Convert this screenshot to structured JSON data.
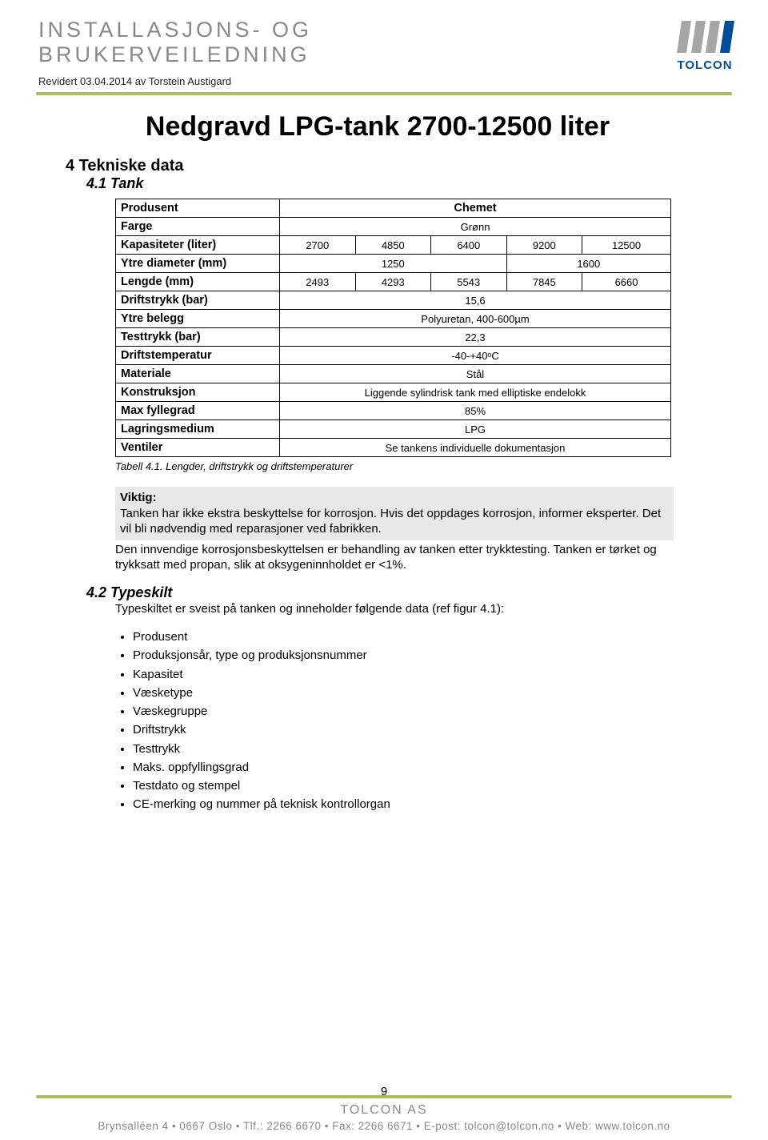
{
  "header": {
    "line1": "INSTALLASJONS- OG",
    "line2": "BRUKERVEILEDNING",
    "revised": "Revidert 03.04.2014 av Torstein Austigard",
    "logo_text": "TOLCON",
    "logo_bars": [
      {
        "fill": "#a6a6a6",
        "skew": -18,
        "x": 0
      },
      {
        "fill": "#a6a6a6",
        "skew": -18,
        "x": 18
      },
      {
        "fill": "#a6a6a6",
        "skew": -18,
        "x": 36
      },
      {
        "fill": "#004e97",
        "skew": -18,
        "x": 54
      }
    ]
  },
  "main_title": "Nedgravd LPG-tank 2700-12500 liter",
  "section4": "4  Tekniske data",
  "section41": "4.1 Tank",
  "table": {
    "columns_spec": 5,
    "rows": [
      {
        "label": "Produsent",
        "value": "Chemet",
        "colspan": 5,
        "bold": true,
        "big": true
      },
      {
        "label": "Farge",
        "value": "Grønn",
        "colspan": 5
      },
      {
        "label": "Kapasiteter (liter)",
        "cells": [
          "2700",
          "4850",
          "6400",
          "9200",
          "12500"
        ]
      },
      {
        "label": "Ytre diameter (mm)",
        "split": [
          {
            "v": "1250",
            "span": 3
          },
          {
            "v": "1600",
            "span": 2
          }
        ]
      },
      {
        "label": "Lengde (mm)",
        "cells": [
          "2493",
          "4293",
          "5543",
          "7845",
          "6660"
        ]
      },
      {
        "label": "Driftstrykk (bar)",
        "value": "15,6",
        "colspan": 5
      },
      {
        "label": "Ytre belegg",
        "value": "Polyuretan, 400-600µm",
        "colspan": 5
      },
      {
        "label": "Testtrykk (bar)",
        "value": "22,3",
        "colspan": 5
      },
      {
        "label": "Driftstemperatur",
        "value": "-40-+40ᵒC",
        "colspan": 5
      },
      {
        "label": "Materiale",
        "value": "Stål",
        "colspan": 5
      },
      {
        "label": "Konstruksjon",
        "value": "Liggende sylindrisk tank med elliptiske endelokk",
        "colspan": 5
      },
      {
        "label": "Max fyllegrad",
        "value": "85%",
        "colspan": 5
      },
      {
        "label": "Lagringsmedium",
        "value": "LPG",
        "colspan": 5
      },
      {
        "label": "Ventiler",
        "value": "Se tankens individuelle dokumentasjon",
        "colspan": 5
      }
    ]
  },
  "caption": "Tabell 4.1. Lengder, driftstrykk og driftstemperaturer",
  "viktig": {
    "head": "Viktig:",
    "body": "Tanken har ikke ekstra beskyttelse for korrosjon. Hvis det oppdages korrosjon, informer eksperter. Det vil bli nødvendig med reparasjoner ved fabrikken."
  },
  "after_box": "Den innvendige korrosjonsbeskyttelsen er behandling av tanken etter trykktesting. Tanken er tørket og trykksatt med propan, slik at oksygeninnholdet er <1%.",
  "section42": "4.2 Typeskilt",
  "sec42_body": "Typeskiltet er sveist på tanken og inneholder følgende data (ref figur 4.1):",
  "bullets": [
    "Produsent",
    "Produksjonsår, type og produksjonsnummer",
    "Kapasitet",
    "Væsketype",
    "Væskegruppe",
    "Driftstrykk",
    "Testtrykk",
    "Maks. oppfyllingsgrad",
    "Testdato og stempel",
    "CE-merking og nummer på teknisk kontrollorgan"
  ],
  "page_num": "9",
  "footer": {
    "company": "TOLCON AS",
    "info": "Brynsalléen 4 • 0667 Oslo • Tlf.: 2266 6670 • Fax: 2266 6671 • E-post: tolcon@tolcon.no • Web: www.tolcon.no"
  }
}
